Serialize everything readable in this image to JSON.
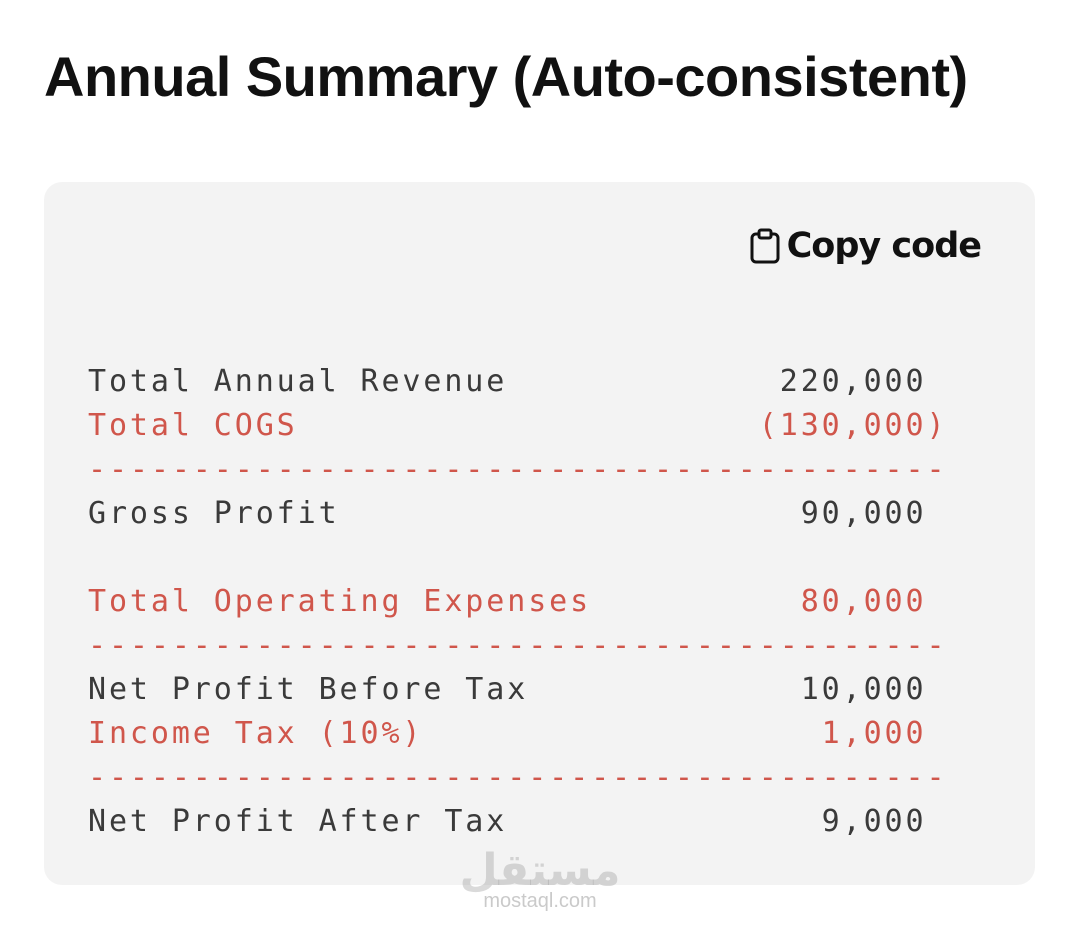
{
  "header": {
    "title": "Annual Summary (Auto-consistent)"
  },
  "code_block": {
    "copy_button": "Copy code",
    "lines": [
      {
        "text": "Total Annual Revenue             220,000",
        "color": "#3a3a3a"
      },
      {
        "text": "Total COGS                      (130,000)",
        "color": "#d0564b"
      },
      {
        "text": "-----------------------------------------",
        "color": "#d0564b"
      },
      {
        "text": "Gross Profit                      90,000",
        "color": "#3a3a3a"
      },
      {
        "text": "Total Operating Expenses          80,000",
        "color": "#d0564b"
      },
      {
        "text": "-----------------------------------------",
        "color": "#d0564b"
      },
      {
        "text": "Net Profit Before Tax             10,000",
        "color": "#3a3a3a"
      },
      {
        "text": "Income Tax (10%)                   1,000",
        "color": "#d0564b"
      },
      {
        "text": "-----------------------------------------",
        "color": "#d0564b"
      },
      {
        "text": "Net Profit After Tax               9,000",
        "color": "#3a3a3a"
      }
    ]
  },
  "watermark": {
    "arabic": "مستقل",
    "site": "mostaql.com"
  }
}
